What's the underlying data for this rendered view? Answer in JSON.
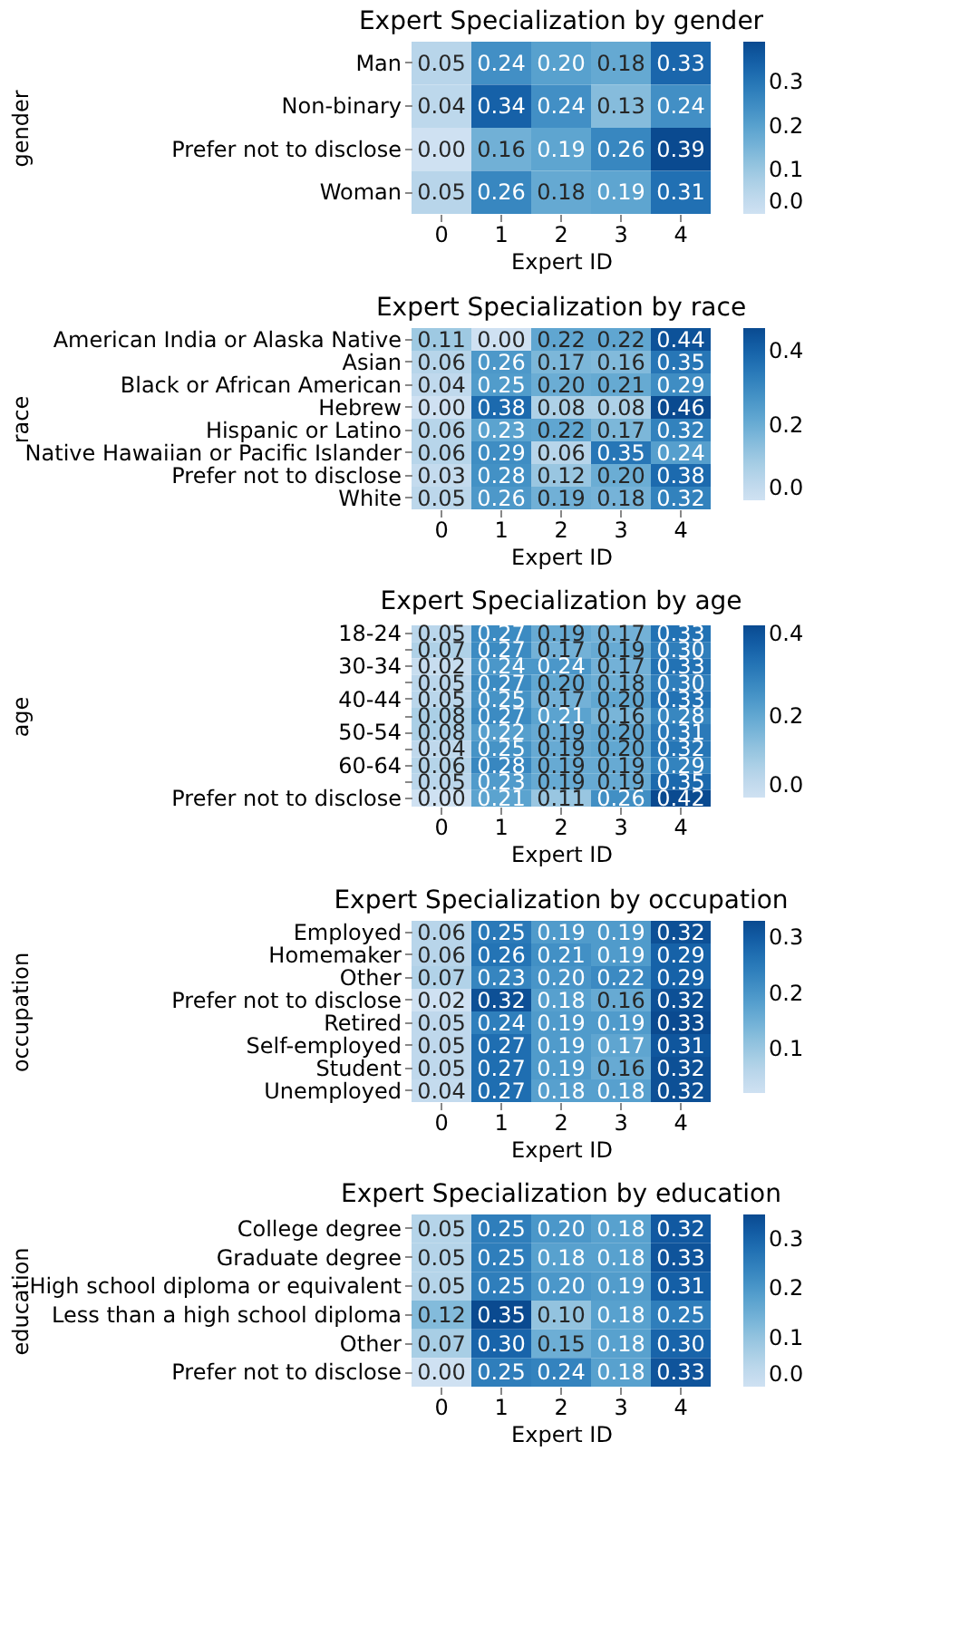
{
  "chart_data": [
    {
      "type": "heatmap",
      "title": "Expert Specialization by gender",
      "xlabel": "Expert ID",
      "ylabel": "gender",
      "categories": [
        "0",
        "1",
        "2",
        "3",
        "4"
      ],
      "y_categories": [
        "Man",
        "Non-binary",
        "Prefer not to disclose",
        "Woman"
      ],
      "cells": [
        [
          0.05,
          0.24,
          0.2,
          0.18,
          0.33
        ],
        [
          0.04,
          0.34,
          0.24,
          0.13,
          0.24
        ],
        [
          0.0,
          0.16,
          0.19,
          0.26,
          0.39
        ],
        [
          0.05,
          0.26,
          0.18,
          0.19,
          0.31
        ]
      ],
      "cell_labels": [
        [
          "0.05",
          "0.24",
          "0.20",
          "0.18",
          "0.33"
        ],
        [
          "0.04",
          "0.34",
          "0.24",
          "0.13",
          "0.24"
        ],
        [
          "0.00",
          "0.16",
          "0.19",
          "0.26",
          "0.39"
        ],
        [
          "0.05",
          "0.26",
          "0.18",
          "0.19",
          "0.31"
        ]
      ],
      "clim": [
        0,
        0.39
      ],
      "cticks": [
        {
          "value": 0,
          "label": "0.0"
        },
        {
          "value": 0.1,
          "label": "0.1"
        },
        {
          "value": 0.2,
          "label": "0.2"
        },
        {
          "value": 0.3,
          "label": "0.3"
        }
      ],
      "data_labels": true
    },
    {
      "type": "heatmap",
      "title": "Expert Specialization by race",
      "xlabel": "Expert ID",
      "ylabel": "race",
      "categories": [
        "0",
        "1",
        "2",
        "3",
        "4"
      ],
      "y_categories": [
        "American India or Alaska Native",
        "Asian",
        "Black or African American",
        "Hebrew",
        "Hispanic or Latino",
        "Native Hawaiian or Pacific Islander",
        "Prefer not to disclose",
        "White"
      ],
      "cells": [
        [
          0.11,
          0.0,
          0.22,
          0.22,
          0.44
        ],
        [
          0.06,
          0.26,
          0.17,
          0.16,
          0.35
        ],
        [
          0.04,
          0.25,
          0.2,
          0.21,
          0.29
        ],
        [
          0.0,
          0.38,
          0.08,
          0.08,
          0.46
        ],
        [
          0.06,
          0.23,
          0.22,
          0.17,
          0.32
        ],
        [
          0.06,
          0.29,
          0.06,
          0.35,
          0.24
        ],
        [
          0.03,
          0.28,
          0.12,
          0.2,
          0.38
        ],
        [
          0.05,
          0.26,
          0.19,
          0.18,
          0.32
        ]
      ],
      "cell_labels": [
        [
          "0.11",
          "0.00",
          "0.22",
          "0.22",
          "0.44"
        ],
        [
          "0.06",
          "0.26",
          "0.17",
          "0.16",
          "0.35"
        ],
        [
          "0.04",
          "0.25",
          "0.20",
          "0.21",
          "0.29"
        ],
        [
          "0.00",
          "0.38",
          "0.08",
          "0.08",
          "0.46"
        ],
        [
          "0.06",
          "0.23",
          "0.22",
          "0.17",
          "0.32"
        ],
        [
          "0.06",
          "0.29",
          "0.06",
          "0.35",
          "0.24"
        ],
        [
          "0.03",
          "0.28",
          "0.12",
          "0.20",
          "0.38"
        ],
        [
          "0.05",
          "0.26",
          "0.19",
          "0.18",
          "0.32"
        ]
      ],
      "clim": [
        0,
        0.46
      ],
      "cticks": [
        {
          "value": 0,
          "label": "0.0"
        },
        {
          "value": 0.2,
          "label": "0.2"
        },
        {
          "value": 0.4,
          "label": "0.4"
        }
      ],
      "data_labels": true
    },
    {
      "type": "heatmap",
      "title": "Expert Specialization by age",
      "xlabel": "Expert ID",
      "ylabel": "age",
      "categories": [
        "0",
        "1",
        "2",
        "3",
        "4"
      ],
      "y_categories": [
        "18-24",
        null,
        "30-34",
        null,
        "40-44",
        null,
        "50-54",
        null,
        "60-64",
        null,
        "Prefer not to disclose"
      ],
      "cells": [
        [
          0.05,
          0.27,
          0.19,
          0.17,
          0.33
        ],
        [
          0.07,
          0.27,
          0.17,
          0.19,
          0.3
        ],
        [
          0.02,
          0.24,
          0.24,
          0.17,
          0.33
        ],
        [
          0.05,
          0.27,
          0.2,
          0.18,
          0.3
        ],
        [
          0.05,
          0.25,
          0.17,
          0.2,
          0.33
        ],
        [
          0.08,
          0.27,
          0.21,
          0.16,
          0.28
        ],
        [
          0.08,
          0.22,
          0.19,
          0.2,
          0.31
        ],
        [
          0.04,
          0.25,
          0.19,
          0.2,
          0.32
        ],
        [
          0.06,
          0.28,
          0.19,
          0.19,
          0.29
        ],
        [
          0.05,
          0.23,
          0.19,
          0.19,
          0.35
        ],
        [
          0.0,
          0.21,
          0.11,
          0.26,
          0.42
        ]
      ],
      "cell_labels": [
        [
          "0.05",
          "0.27",
          "0.19",
          "0.17",
          "0.33"
        ],
        [
          "0.07",
          "0.27",
          "0.17",
          "0.19",
          "0.30"
        ],
        [
          "0.02",
          "0.24",
          "0.24",
          "0.17",
          "0.33"
        ],
        [
          "0.05",
          "0.27",
          "0.20",
          "0.18",
          "0.30"
        ],
        [
          "0.05",
          "0.25",
          "0.17",
          "0.20",
          "0.33"
        ],
        [
          "0.08",
          "0.27",
          "0.21",
          "0.16",
          "0.28"
        ],
        [
          "0.08",
          "0.22",
          "0.19",
          "0.20",
          "0.31"
        ],
        [
          "0.04",
          "0.25",
          "0.19",
          "0.20",
          "0.32"
        ],
        [
          "0.06",
          "0.28",
          "0.19",
          "0.19",
          "0.29"
        ],
        [
          "0.05",
          "0.23",
          "0.19",
          "0.19",
          "0.35"
        ],
        [
          "0.00",
          "0.21",
          "0.11",
          "0.26",
          "0.42"
        ]
      ],
      "clim": [
        0,
        0.42
      ],
      "cticks": [
        {
          "value": 0,
          "label": "0.0"
        },
        {
          "value": 0.2,
          "label": "0.2"
        },
        {
          "value": 0.4,
          "label": "0.4"
        }
      ],
      "data_labels": true
    },
    {
      "type": "heatmap",
      "title": "Expert Specialization by occupation",
      "xlabel": "Expert ID",
      "ylabel": "occupation",
      "categories": [
        "0",
        "1",
        "2",
        "3",
        "4"
      ],
      "y_categories": [
        "Employed",
        "Homemaker",
        "Other",
        "Prefer not to disclose",
        "Retired",
        "Self-employed",
        "Student",
        "Unemployed"
      ],
      "cells": [
        [
          0.06,
          0.25,
          0.19,
          0.19,
          0.32
        ],
        [
          0.06,
          0.26,
          0.21,
          0.19,
          0.29
        ],
        [
          0.07,
          0.23,
          0.2,
          0.22,
          0.29
        ],
        [
          0.02,
          0.32,
          0.18,
          0.16,
          0.32
        ],
        [
          0.05,
          0.24,
          0.19,
          0.19,
          0.33
        ],
        [
          0.05,
          0.27,
          0.19,
          0.17,
          0.31
        ],
        [
          0.05,
          0.27,
          0.19,
          0.16,
          0.32
        ],
        [
          0.04,
          0.27,
          0.18,
          0.18,
          0.32
        ]
      ],
      "cell_labels": [
        [
          "0.06",
          "0.25",
          "0.19",
          "0.19",
          "0.32"
        ],
        [
          "0.06",
          "0.26",
          "0.21",
          "0.19",
          "0.29"
        ],
        [
          "0.07",
          "0.23",
          "0.20",
          "0.22",
          "0.29"
        ],
        [
          "0.02",
          "0.32",
          "0.18",
          "0.16",
          "0.32"
        ],
        [
          "0.05",
          "0.24",
          "0.19",
          "0.19",
          "0.33"
        ],
        [
          "0.05",
          "0.27",
          "0.19",
          "0.17",
          "0.31"
        ],
        [
          "0.05",
          "0.27",
          "0.19",
          "0.16",
          "0.32"
        ],
        [
          "0.04",
          "0.27",
          "0.18",
          "0.18",
          "0.32"
        ]
      ],
      "clim": [
        0.02,
        0.33
      ],
      "cticks": [
        0.1,
        0.2,
        0.3
      ],
      "data_labels": true
    },
    {
      "type": "heatmap",
      "title": "Expert Specialization by education",
      "xlabel": "Expert ID",
      "ylabel": "education",
      "categories": [
        "0",
        "1",
        "2",
        "3",
        "4"
      ],
      "y_categories": [
        "College degree",
        "Graduate degree",
        "High school diploma or equivalent",
        "Less than a high school diploma",
        "Other",
        "Prefer not to disclose"
      ],
      "cells": [
        [
          0.05,
          0.25,
          0.2,
          0.18,
          0.32
        ],
        [
          0.05,
          0.25,
          0.18,
          0.18,
          0.33
        ],
        [
          0.05,
          0.25,
          0.2,
          0.19,
          0.31
        ],
        [
          0.12,
          0.35,
          0.1,
          0.18,
          0.25
        ],
        [
          0.07,
          0.3,
          0.15,
          0.18,
          0.3
        ],
        [
          0.0,
          0.25,
          0.24,
          0.18,
          0.33
        ]
      ],
      "cell_labels": [
        [
          "0.05",
          "0.25",
          "0.20",
          "0.18",
          "0.32"
        ],
        [
          "0.05",
          "0.25",
          "0.18",
          "0.18",
          "0.33"
        ],
        [
          "0.05",
          "0.25",
          "0.20",
          "0.19",
          "0.31"
        ],
        [
          "0.12",
          "0.35",
          "0.10",
          "0.18",
          "0.25"
        ],
        [
          "0.07",
          "0.30",
          "0.15",
          "0.18",
          "0.30"
        ],
        [
          "0.00",
          "0.25",
          "0.24",
          "0.18",
          "0.33"
        ]
      ],
      "clim": [
        0,
        0.35
      ],
      "cticks": [
        {
          "value": 0,
          "label": "0.0"
        },
        {
          "value": 0.1,
          "label": "0.1"
        },
        {
          "value": 0.2,
          "label": "0.2"
        },
        {
          "value": 0.3,
          "label": "0.3"
        }
      ],
      "data_labels": true
    }
  ]
}
